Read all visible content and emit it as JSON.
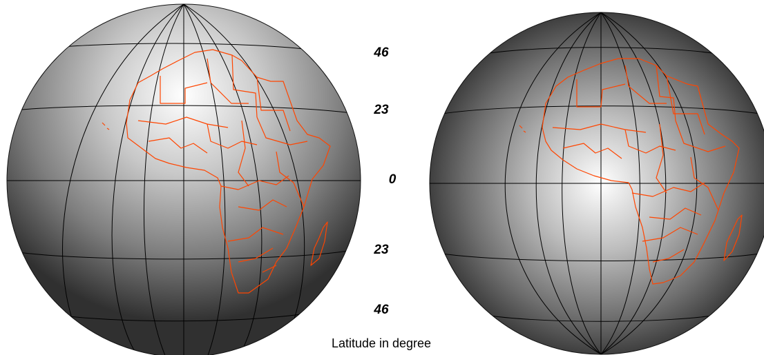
{
  "figure": {
    "latitude_labels": [
      "46",
      "23",
      "0",
      "23",
      "46"
    ],
    "caption": "Latitude in degree"
  },
  "globes": [
    {
      "name": "left-globe",
      "shading": "radial gray, bright spot over northwest Africa",
      "graticule_color": "#000000",
      "boundary_color": "#ff4500"
    },
    {
      "name": "right-globe",
      "shading": "radial gray, bright spot over Gulf of Guinea at the equator",
      "graticule_color": "#000000",
      "boundary_color": "#ff4500"
    }
  ],
  "colors": {
    "background": "#ffffff",
    "boundary": "#ff4500",
    "graticule": "#000000",
    "label": "#000000"
  }
}
